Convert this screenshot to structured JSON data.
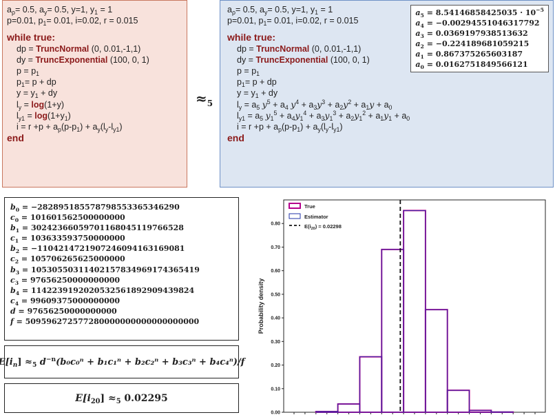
{
  "left": {
    "params1": "= 0.5, a",
    "params1b": "= 0.5, y=1, y",
    "params1c": " = 1",
    "params2": "p=0.01, p",
    "params2b": "= 0.01, i=0.02, r = 0.015",
    "while": "while true:",
    "dp_pre": "dp = ",
    "dp_fn": "TruncNormal",
    "dp_args": " (0, 0.01,-1,1)",
    "dy_pre": "dy = ",
    "dy_fn": "TruncExponential",
    "dy_args": " (100, 0, 1)",
    "p_line": "p = p",
    "p1_line_a": "p",
    "p1_line_b": "= p + dp",
    "y_line_a": "y  = y",
    "y_line_b": " + dy",
    "ly_a": "l",
    "ly_b": " = ",
    "ly_fn": "log",
    "ly_c": "(1+y)",
    "ly1_a": "l",
    "ly1_b": " = ",
    "ly1_fn": "log",
    "ly1_c": "(1+y",
    "ly1_d": ")",
    "i_line": "i = r +p + a",
    "i_line_b": "(p-p",
    "i_line_c": ") + a",
    "i_line_d": "(l",
    "i_line_e": "-l",
    "i_line_f": ")",
    "end": "end"
  },
  "approx": {
    "symbol": "≈",
    "sub": "5"
  },
  "right": {
    "ly_poly": " = a",
    "ly1_poly": " =  a",
    "coefs": [
      {
        "name": "a",
        "sub": "5",
        "value": " = 8.54146858425035 · 10",
        "exp": "−5"
      },
      {
        "name": "a",
        "sub": "4",
        "value": " = −0.00294551046317792"
      },
      {
        "name": "a",
        "sub": "3",
        "value": " = 0.0369197938513632"
      },
      {
        "name": "a",
        "sub": "2",
        "value": " = −0.224189681059215"
      },
      {
        "name": "a",
        "sub": "1",
        "value": " = 0.867375265603187"
      },
      {
        "name": "a",
        "sub": "0",
        "value": " = 0.0162751849566121"
      }
    ]
  },
  "constants": [
    {
      "name": "b",
      "sub": "0",
      "value": " = −28289518557879855336534629​0"
    },
    {
      "name": "c",
      "sub": "0",
      "value": " = 101601562500000000"
    },
    {
      "name": "b",
      "sub": "1",
      "value": " = 302423660597011680451197665​28"
    },
    {
      "name": "c",
      "sub": "1",
      "value": " = 103633593750000000"
    },
    {
      "name": "b",
      "sub": "2",
      "value": " = −110421472190724609416316908​1"
    },
    {
      "name": "c",
      "sub": "2",
      "value": " = 105706265625000000"
    },
    {
      "name": "b",
      "sub": "3",
      "value": " = 105305503114021578349691743​65419"
    },
    {
      "name": "c",
      "sub": "3",
      "value": " = 97656250000000000"
    },
    {
      "name": "b",
      "sub": "4",
      "value": " = 114223919202053256189290​9439824"
    },
    {
      "name": "c",
      "sub": "4",
      "value": " = 99609375000000000"
    },
    {
      "name": "d",
      "sub": "",
      "value": "  = 97656250000000000"
    },
    {
      "name": "f",
      "sub": "",
      "value": "  = 509596272577280000000000000000000"
    }
  ],
  "formula": {
    "lhs": "E[i",
    "lhs_sub": "n",
    "lhs_end": "] ≈",
    "approx_sub": "5",
    "rhs": " d",
    "rhs_sup": "−n",
    "body": "(b₀c₀ⁿ + b₁c₁ⁿ + b₂c₂ⁿ + b₃c₃ⁿ + b₄c₄ⁿ)/f"
  },
  "result": {
    "lhs": "E[i",
    "sub": "20",
    "mid": "] ≈",
    "approx_sub": "5",
    "value": " 0.02295"
  },
  "chart_data": {
    "type": "bar",
    "ylabel": "Probability density",
    "ylim": [
      0,
      0.9
    ],
    "yticks": [
      "0.00",
      "0.10",
      "0.20",
      "0.30",
      "0.40",
      "0.50",
      "0.60",
      "0.70",
      "0.80"
    ],
    "bins": 11,
    "series": [
      {
        "name": "True",
        "values": [
          0.0,
          0.003,
          0.035,
          0.235,
          0.69,
          0.855,
          0.435,
          0.093,
          0.008,
          0.001,
          0.0
        ],
        "color": "#b4008c"
      },
      {
        "name": "Estimator",
        "values": [
          0.0,
          0.003,
          0.035,
          0.235,
          0.69,
          0.855,
          0.435,
          0.093,
          0.008,
          0.001,
          0.0
        ],
        "color": "#2233aa"
      }
    ],
    "mean_line": {
      "label": "E(i",
      "label_sub": "20",
      "label_end": ") = 0.02298",
      "bin_position": 4.85
    },
    "legend": "top-left",
    "grid": false
  }
}
